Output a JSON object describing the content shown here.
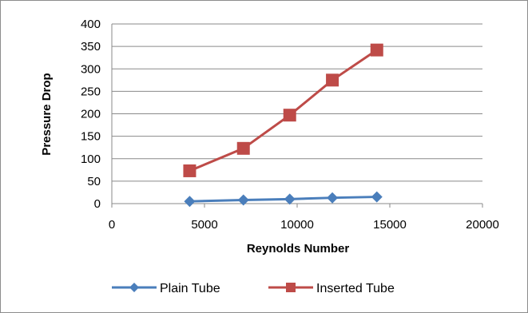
{
  "chart_data": {
    "type": "line",
    "title": "",
    "xlabel": "Reynolds Number",
    "ylabel": "Pressure Drop",
    "xlim": [
      0,
      20000
    ],
    "ylim": [
      0,
      400
    ],
    "xticks": [
      0,
      5000,
      10000,
      15000,
      20000
    ],
    "yticks": [
      0,
      50,
      100,
      150,
      200,
      250,
      300,
      350,
      400
    ],
    "grid": "horizontal",
    "legend_position": "bottom",
    "series": [
      {
        "name": "Plain Tube",
        "color": "#4a7ebb",
        "marker": "diamond",
        "x": [
          4200,
          7100,
          9600,
          11900,
          14300
        ],
        "y": [
          5,
          8,
          10,
          13,
          15
        ]
      },
      {
        "name": "Inserted Tube",
        "color": "#be4b48",
        "marker": "square",
        "x": [
          4200,
          7100,
          9600,
          11900,
          14300
        ],
        "y": [
          73,
          123,
          197,
          275,
          342
        ]
      }
    ]
  }
}
